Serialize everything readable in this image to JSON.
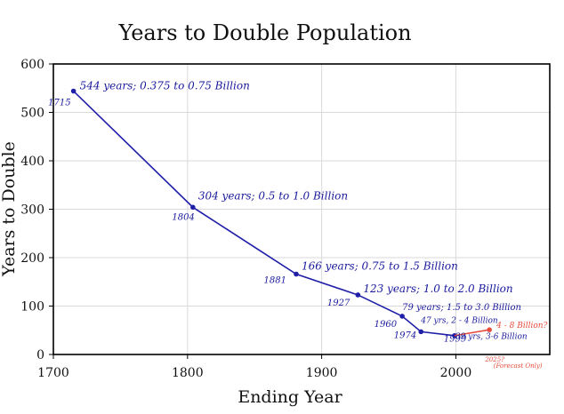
{
  "chart_data": {
    "type": "line",
    "title": "Years to Double Population",
    "xlabel": "Ending Year",
    "ylabel": "Years to Double",
    "xlim": [
      1700,
      2070
    ],
    "ylim": [
      0,
      600
    ],
    "xticks": [
      "1700",
      "1800",
      "1900",
      "2000"
    ],
    "yticks": [
      "0",
      "100",
      "200",
      "300",
      "400",
      "500",
      "600"
    ],
    "grid": true,
    "series": [
      {
        "color": "#1f1fa8",
        "points": [
          {
            "x": 1715,
            "y": 544,
            "year_label": "1715",
            "note": "544 years; 0.375 to 0.75 Billion"
          },
          {
            "x": 1804,
            "y": 304,
            "year_label": "1804",
            "note": "304 years; 0.5 to 1.0 Billion"
          },
          {
            "x": 1881,
            "y": 166,
            "year_label": "1881",
            "note": "166 years; 0.75 to 1.5 Billion"
          },
          {
            "x": 1927,
            "y": 123,
            "year_label": "1927",
            "note": "123 years; 1.0 to 2.0 Billion"
          },
          {
            "x": 1960,
            "y": 79,
            "year_label": "1960",
            "note": "79 years; 1.5 to 3.0 Billion"
          },
          {
            "x": 1974,
            "y": 47,
            "year_label": "1974",
            "note": "47 yrs, 2 - 4 Billion"
          },
          {
            "x": 1999,
            "y": 39,
            "year_label": "1999",
            "note": "39 yrs, 3-6 Billion"
          }
        ]
      },
      {
        "color": "#e74c3c",
        "points": [
          {
            "x": 1999,
            "y": 39
          },
          {
            "x": 2025,
            "y": 51,
            "year_label": "2025?",
            "note": "4 - 8 Billion?",
            "note2": "(Forecast Only)"
          }
        ]
      }
    ]
  }
}
